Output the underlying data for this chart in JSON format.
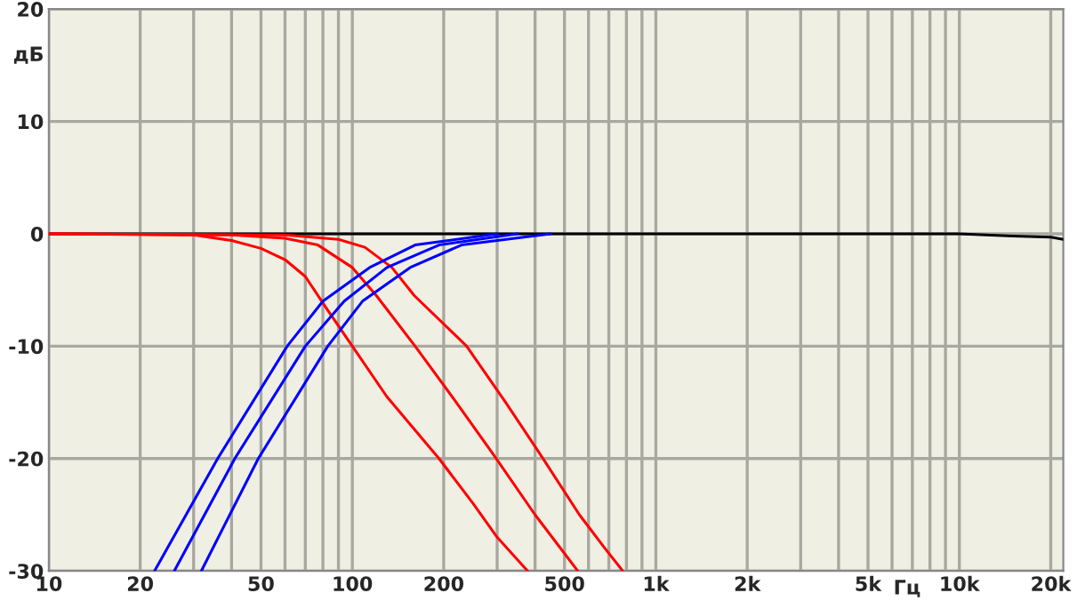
{
  "chart_data": {
    "type": "line",
    "xlabel": "Гц",
    "ylabel": "дБ",
    "log": "x",
    "grid": true,
    "legend": false,
    "marker": "none",
    "line_style": "solid",
    "xlim": [
      10,
      22000
    ],
    "ylim": [
      -30,
      20
    ],
    "xticks": [
      10,
      20,
      {
        "value": 30,
        "label": null
      },
      {
        "value": 40,
        "label": null
      },
      50,
      {
        "value": 60,
        "label": null
      },
      {
        "value": 70,
        "label": null
      },
      {
        "value": 80,
        "label": null
      },
      {
        "value": 90,
        "label": null
      },
      100,
      200,
      {
        "value": 300,
        "label": null
      },
      {
        "value": 400,
        "label": null
      },
      500,
      {
        "value": 600,
        "label": null
      },
      {
        "value": 700,
        "label": null
      },
      {
        "value": 800,
        "label": null
      },
      {
        "value": 900,
        "label": null
      },
      {
        "value": 1000,
        "label": "1k"
      },
      {
        "value": 2000,
        "label": "2k"
      },
      {
        "value": 3000,
        "label": null
      },
      {
        "value": 4000,
        "label": null
      },
      {
        "value": 5000,
        "label": "5k"
      },
      {
        "value": 6000,
        "label": null
      },
      {
        "value": 7000,
        "label": null
      },
      {
        "value": 8000,
        "label": null
      },
      {
        "value": 9000,
        "label": null
      },
      {
        "value": 10000,
        "label": "10k"
      },
      {
        "value": 20000,
        "label": "20k"
      }
    ],
    "yticks": [
      -30,
      -20,
      -10,
      0,
      10,
      20
    ],
    "series": [
      {
        "color": "#000000",
        "x": [
          10,
          100,
          1000,
          5000,
          10000,
          15000,
          20000,
          22000
        ],
        "values": [
          0,
          0,
          0,
          0,
          0,
          -0.2,
          -0.3,
          -0.5
        ]
      },
      {
        "color": "#ff0000",
        "x": [
          10,
          30,
          40,
          50,
          60,
          70,
          82,
          100,
          130,
          193,
          250,
          300,
          378
        ],
        "values": [
          0,
          -0.1,
          -0.6,
          -1.3,
          -2.3,
          -3.8,
          -6.6,
          -10,
          -14.5,
          -20,
          -24,
          -27,
          -30
        ]
      },
      {
        "color": "#ff0000",
        "x": [
          10,
          40,
          60,
          77,
          100,
          120,
          161,
          220,
          298,
          400,
          553
        ],
        "values": [
          0,
          -0.1,
          -0.4,
          -1,
          -3,
          -5.5,
          -10,
          -15,
          -20,
          -25,
          -30
        ]
      },
      {
        "color": "#ff0000",
        "x": [
          10,
          60,
          90,
          110,
          135,
          160,
          238,
          320,
          425,
          560,
          680,
          778
        ],
        "values": [
          0,
          -0.1,
          -0.5,
          -1.2,
          -3,
          -5.5,
          -10,
          -15,
          -20,
          -25,
          -28,
          -30
        ]
      },
      {
        "color": "#0000ff",
        "x": [
          22.3,
          36,
          61,
          80,
          114,
          161,
          300
        ],
        "values": [
          -30,
          -20,
          -10,
          -6,
          -3,
          -1,
          0
        ]
      },
      {
        "color": "#0000ff",
        "x": [
          25.9,
          41,
          70,
          94,
          130,
          193,
          350
        ],
        "values": [
          -30,
          -20,
          -10,
          -6,
          -3,
          -1,
          0
        ]
      },
      {
        "color": "#0000ff",
        "x": [
          31.8,
          49,
          83,
          108,
          155,
          229,
          450
        ],
        "values": [
          -30,
          -20,
          -10,
          -6,
          -3,
          -1,
          0
        ]
      }
    ]
  }
}
